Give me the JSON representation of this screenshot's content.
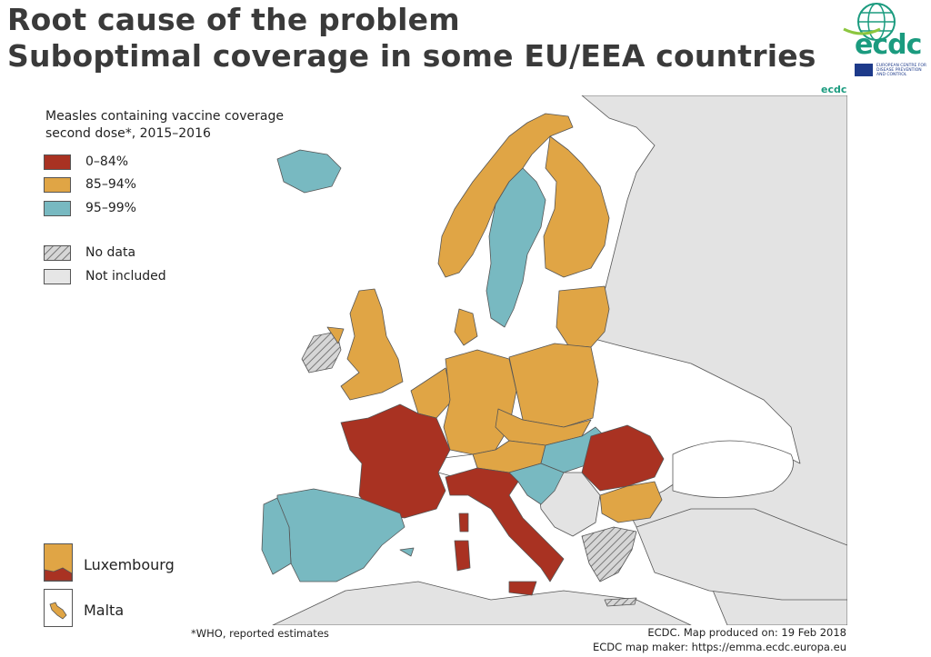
{
  "title": {
    "line1": "Root cause of the problem",
    "line2": "Suboptimal coverage in some EU/EEA countries"
  },
  "logo": {
    "text": "ecdc",
    "subtitle": "EUROPEAN CENTRE FOR DISEASE PREVENTION AND CONTROL",
    "small_text": "ecdc"
  },
  "legend": {
    "title_line1": "Measles containing vaccine coverage",
    "title_line2": "second dose*, 2015–2016",
    "items": [
      {
        "label": "0–84%",
        "color": "#a93222"
      },
      {
        "label": "85–94%",
        "color": "#e0a545"
      },
      {
        "label": "95–99%",
        "color": "#78b9c1"
      },
      {
        "label": "No data",
        "color": "hatched"
      },
      {
        "label": "Not included",
        "color": "#e6e6e6"
      }
    ]
  },
  "insets": {
    "luxembourg": "Luxembourg",
    "malta": "Malta"
  },
  "map": {
    "colors": {
      "red": "#a93222",
      "orange": "#e0a545",
      "blue": "#78b9c1",
      "grey": "#e3e3e3",
      "white": "#ffffff",
      "border": "#555555"
    },
    "countries": {
      "France": "0–84%",
      "Italy": "0–84%",
      "Romania": "0–84%",
      "Spain": "95–99%",
      "Portugal": "95–99%",
      "Sweden": "95–99%",
      "Hungary": "95–99%",
      "Iceland": "95–99%",
      "Norway": "85–94%",
      "Finland": "85–94%",
      "Estonia": "85–94%",
      "Latvia": "85–94%",
      "Lithuania": "85–94%",
      "Poland": "85–94%",
      "Germany": "85–94%",
      "Denmark": "85–94%",
      "United Kingdom": "85–94%",
      "Ireland": "No data",
      "Belgium": "85–94%",
      "Netherlands": "85–94%",
      "Luxembourg": "85–94%",
      "Czechia": "85–94%",
      "Slovakia": "85–94%",
      "Austria": "85–94%",
      "Slovenia": "95–99%",
      "Croatia": "95–99%",
      "Bulgaria": "85–94%",
      "Greece": "No data",
      "Malta": "85–94%",
      "Switzerland": "Not included"
    }
  },
  "footnote": "*WHO, reported estimates",
  "credits": {
    "line1": "ECDC. Map produced on: 19 Feb 2018",
    "line2": "ECDC map maker: https://emma.ecdc.europa.eu"
  }
}
